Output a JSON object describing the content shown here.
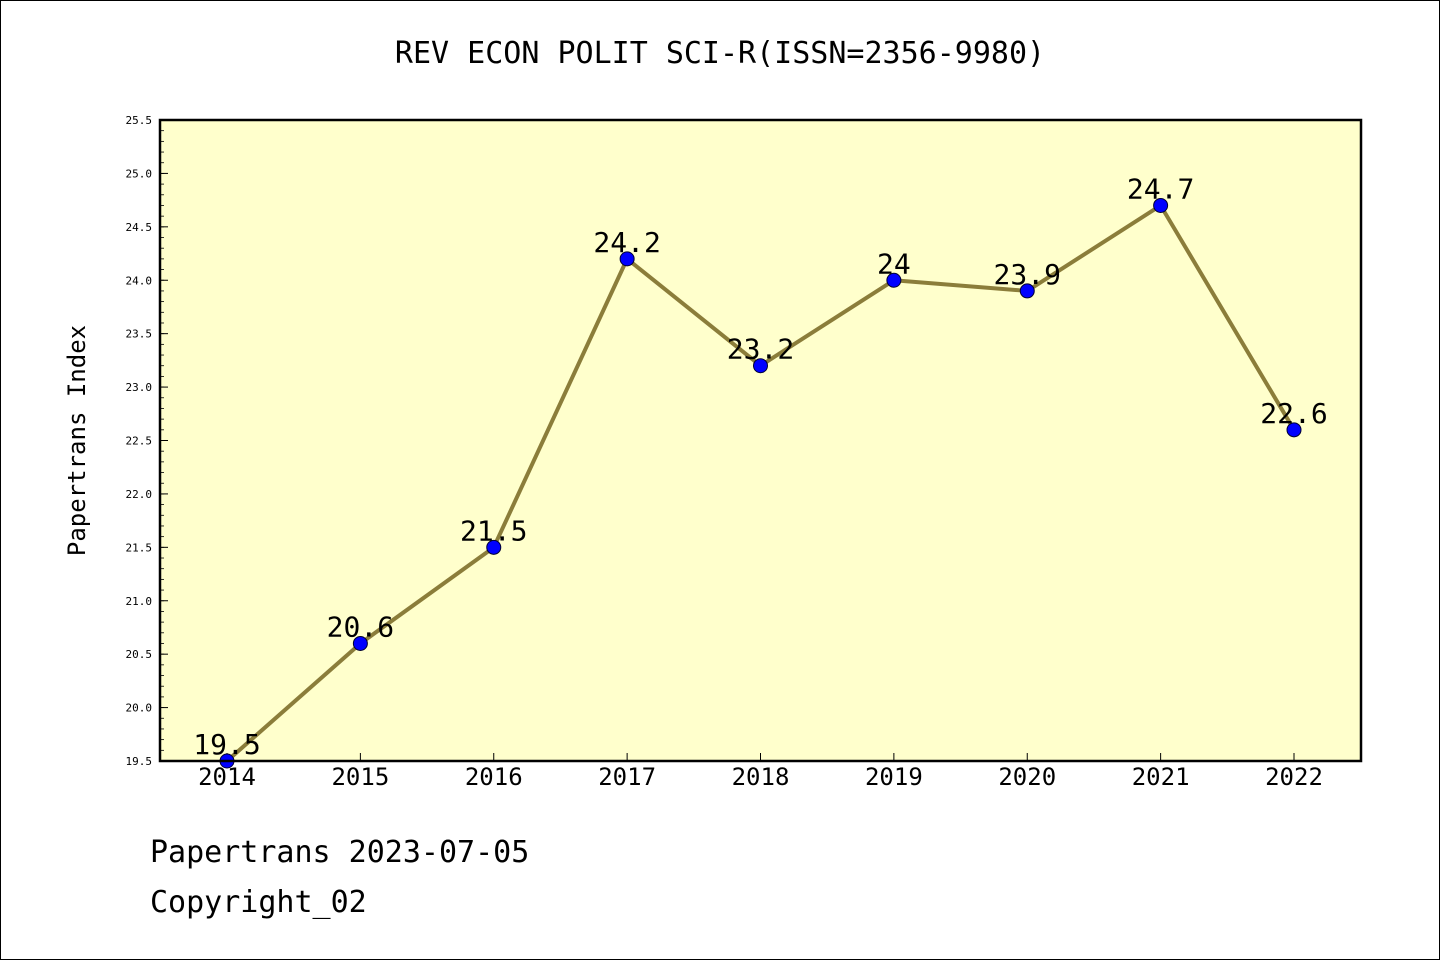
{
  "colors": {
    "plot_background": "#ffffcc",
    "line": "#8b7d3a",
    "marker": "#0000ff"
  },
  "chart_data": {
    "type": "line",
    "title": "REV ECON POLIT SCI-R(ISSN=2356-9980)",
    "xlabel": "",
    "ylabel": "Papertrans Index",
    "categories": [
      "2014",
      "2015",
      "2016",
      "2017",
      "2018",
      "2019",
      "2020",
      "2021",
      "2022"
    ],
    "series": [
      {
        "values": [
          19.5,
          20.6,
          21.5,
          24.2,
          23.2,
          24,
          23.9,
          24.7,
          22.6
        ],
        "data_labels": [
          "19.5",
          "20.6",
          "21.5",
          "24.2",
          "23.2",
          "24",
          "23.9",
          "24.7",
          "22.6"
        ]
      }
    ],
    "ylim": [
      19.5,
      25.5
    ],
    "yticks": [
      "19.5",
      "20.0",
      "20.5",
      "21.0",
      "21.5",
      "22.0",
      "22.5",
      "23.0",
      "23.5",
      "24.0",
      "24.5",
      "25.0",
      "25.5"
    ],
    "grid": false,
    "legend": "none"
  },
  "footer": {
    "line1": "Papertrans 2023-07-05",
    "line2": "Copyright_02"
  }
}
